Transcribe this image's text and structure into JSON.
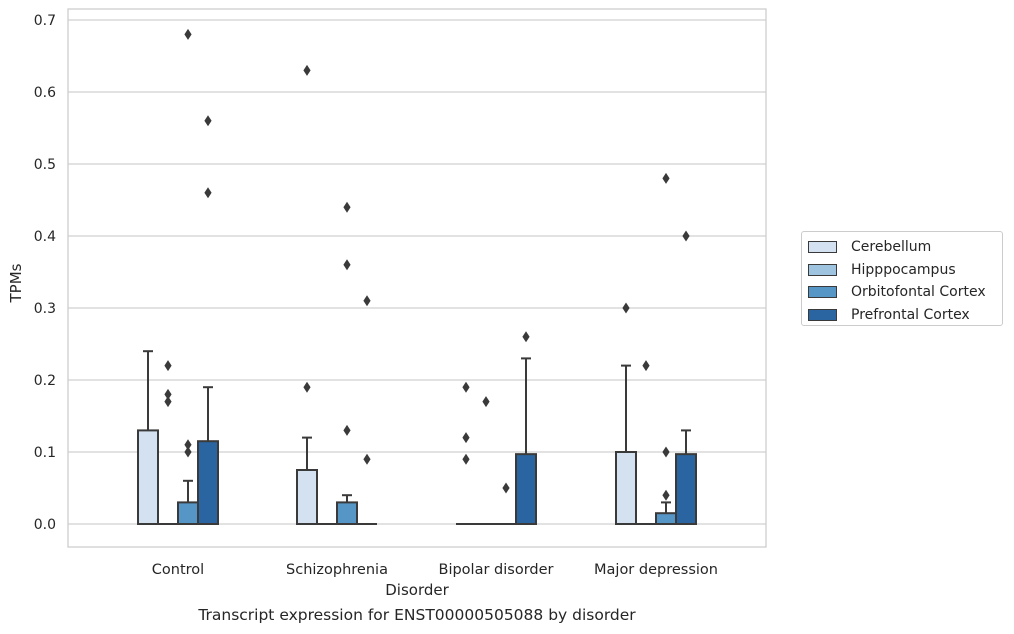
{
  "chart_data": {
    "type": "bar",
    "xlabel": "Disorder",
    "ylabel": "TPMs",
    "caption": "Transcript expression for ENST00000505088 by disorder",
    "categories": [
      "Control",
      "Schizophrenia",
      "Bipolar disorder",
      "Major depression"
    ],
    "ylim": [
      -0.033,
      0.715
    ],
    "yticks": [
      0.0,
      0.1,
      0.2,
      0.3,
      0.4,
      0.5,
      0.6,
      0.7
    ],
    "ytick_labels": [
      "0.0",
      "0.1",
      "0.2",
      "0.3",
      "0.4",
      "0.5",
      "0.6",
      "0.7"
    ],
    "grid": true,
    "legend_position": "right, outside plot",
    "series": [
      {
        "name": "Cerebellum",
        "color": "#d3e1f0",
        "values": [
          0.13,
          0.075,
          0.0,
          0.1
        ],
        "whisker_high": [
          0.24,
          0.12,
          null,
          0.22
        ],
        "outliers": [
          [],
          [
            0.19,
            0.63
          ],
          [
            0.09,
            0.12,
            0.19
          ],
          [
            0.3
          ]
        ]
      },
      {
        "name": "Hipppocampus",
        "color": "#9ec4e0",
        "values": [
          0.0,
          0.0,
          0.0,
          0.0
        ],
        "whisker_high": [
          null,
          null,
          null,
          null
        ],
        "outliers": [
          [
            0.17,
            0.18,
            0.22
          ],
          [],
          [
            0.17
          ],
          [
            0.22
          ]
        ]
      },
      {
        "name": "Orbitofontal Cortex",
        "color": "#5696c6",
        "values": [
          0.03,
          0.03,
          0.0,
          0.015
        ],
        "whisker_high": [
          0.06,
          0.04,
          null,
          0.03
        ],
        "outliers": [
          [
            0.1,
            0.11,
            0.68
          ],
          [
            0.13,
            0.36,
            0.44
          ],
          [
            0.05
          ],
          [
            0.04,
            0.1,
            0.48
          ]
        ]
      },
      {
        "name": "Prefrontal Cortex",
        "color": "#2a65a1",
        "values": [
          0.115,
          0.0,
          0.097,
          0.097
        ],
        "whisker_high": [
          0.19,
          null,
          0.23,
          0.13
        ],
        "outliers": [
          [
            0.46,
            0.56
          ],
          [
            0.09,
            0.31
          ],
          [
            0.26
          ],
          [
            0.4
          ]
        ]
      }
    ]
  }
}
